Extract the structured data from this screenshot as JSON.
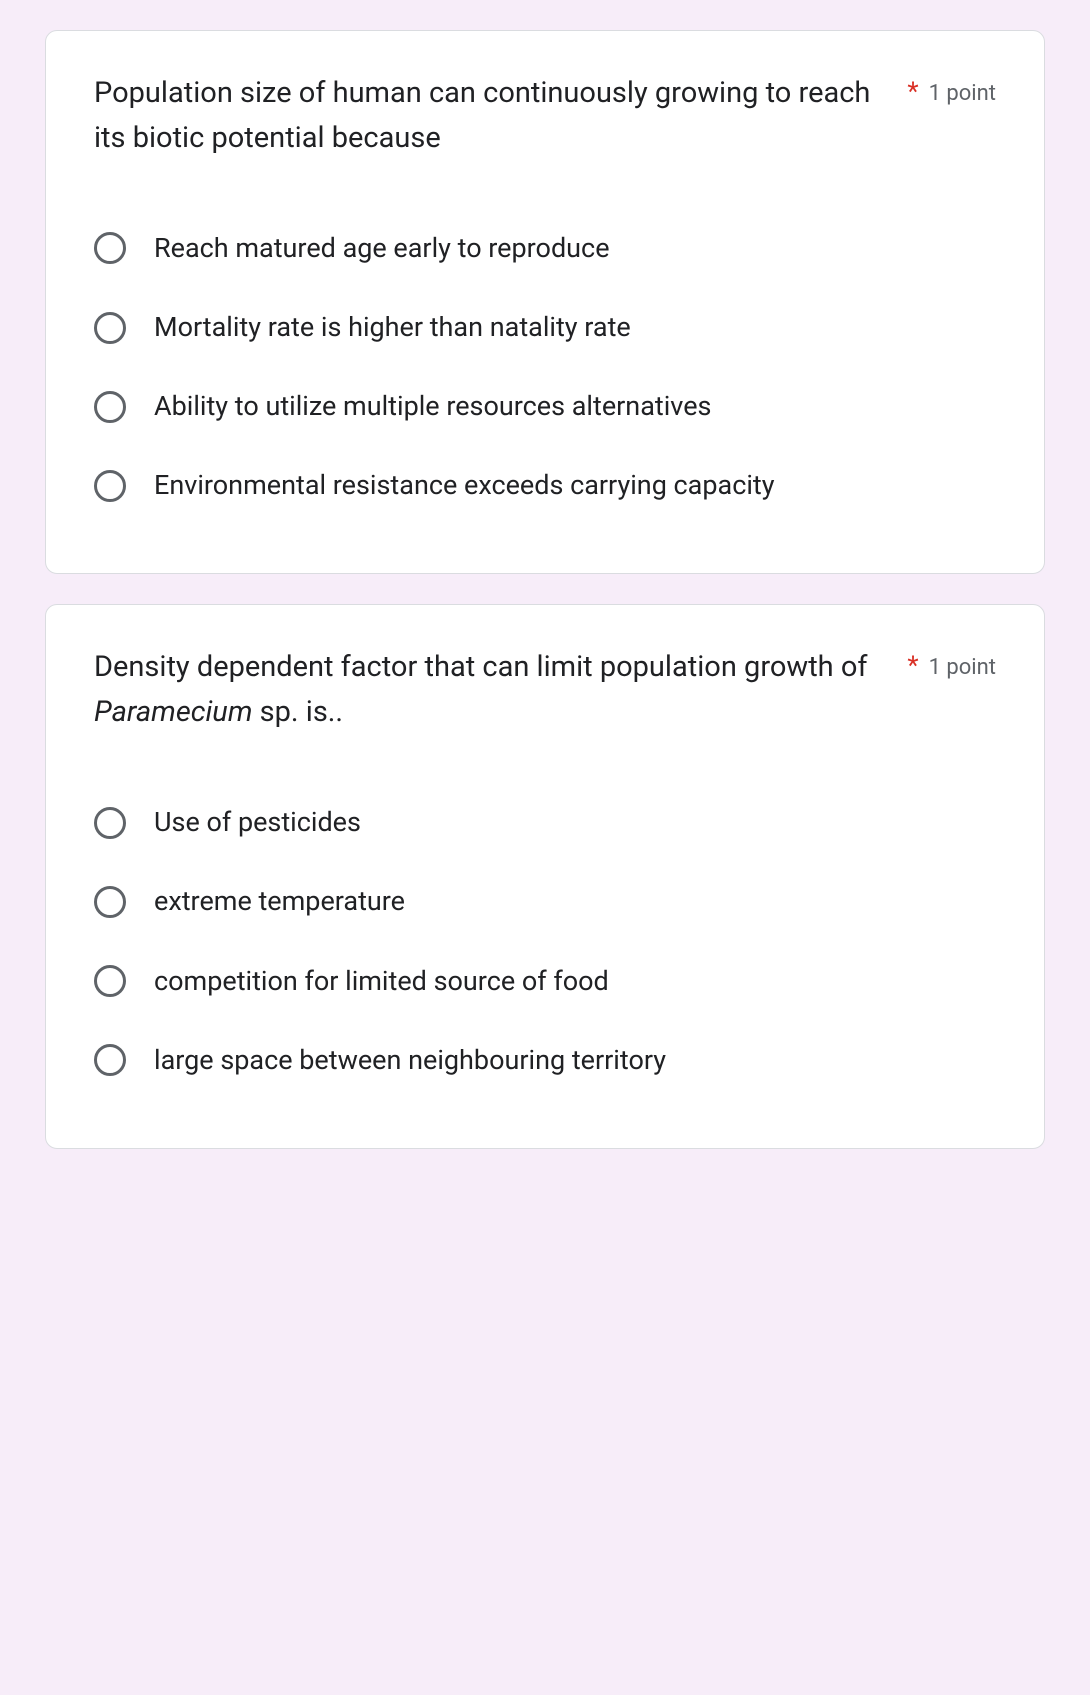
{
  "colors": {
    "page_bg": "#f7edf9",
    "card_bg": "#ffffff",
    "card_border": "#dadce0",
    "text_primary": "#202124",
    "text_secondary": "#5f6368",
    "required": "#d93025",
    "radio_border": "#5f6368"
  },
  "typography": {
    "question_fontsize": 29,
    "option_fontsize": 27,
    "points_fontsize": 22,
    "font_family": "Roboto, Arial, sans-serif"
  },
  "questions": [
    {
      "text_plain": "Population size of human can continuously growing to reach its biotic potential because",
      "required_mark": "*",
      "points_label": "1 point",
      "options": [
        "Reach matured age early to reproduce",
        "Mortality rate is higher than natality rate",
        "Ability to utilize multiple resources alternatives",
        "Environmental resistance exceeds carrying capacity"
      ]
    },
    {
      "text_pre": "Density dependent factor that can limit population growth of ",
      "text_italic": "Paramecium",
      "text_post": " sp. is..",
      "required_mark": "*",
      "points_label": "1 point",
      "options": [
        "Use of pesticides",
        "extreme temperature",
        "competition for limited source of food",
        "large space between neighbouring territory"
      ]
    }
  ]
}
